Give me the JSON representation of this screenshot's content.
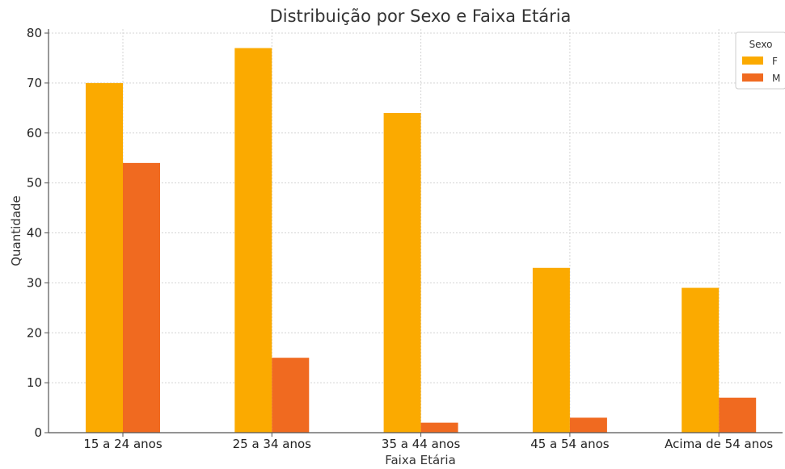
{
  "chart_data": {
    "type": "bar",
    "title": "Distribuição por Sexo e Faixa Etária",
    "xlabel": "Faixa Etária",
    "ylabel": "Quantidade",
    "categories": [
      "15 a 24 anos",
      "25 a 34 anos",
      "35 a 44 anos",
      "45 a 54 anos",
      "Acima de 54 anos"
    ],
    "series": [
      {
        "name": "F",
        "color": "#FBAA00",
        "values": [
          70,
          77,
          64,
          33,
          29
        ]
      },
      {
        "name": "M",
        "color": "#F06A20",
        "values": [
          54,
          15,
          2,
          3,
          7
        ]
      }
    ],
    "ylim": [
      0,
      80
    ],
    "yticks": [
      0,
      10,
      20,
      30,
      40,
      50,
      60,
      70,
      80
    ],
    "grid": true,
    "legend": {
      "title": "Sexo",
      "position": "top-right"
    }
  }
}
